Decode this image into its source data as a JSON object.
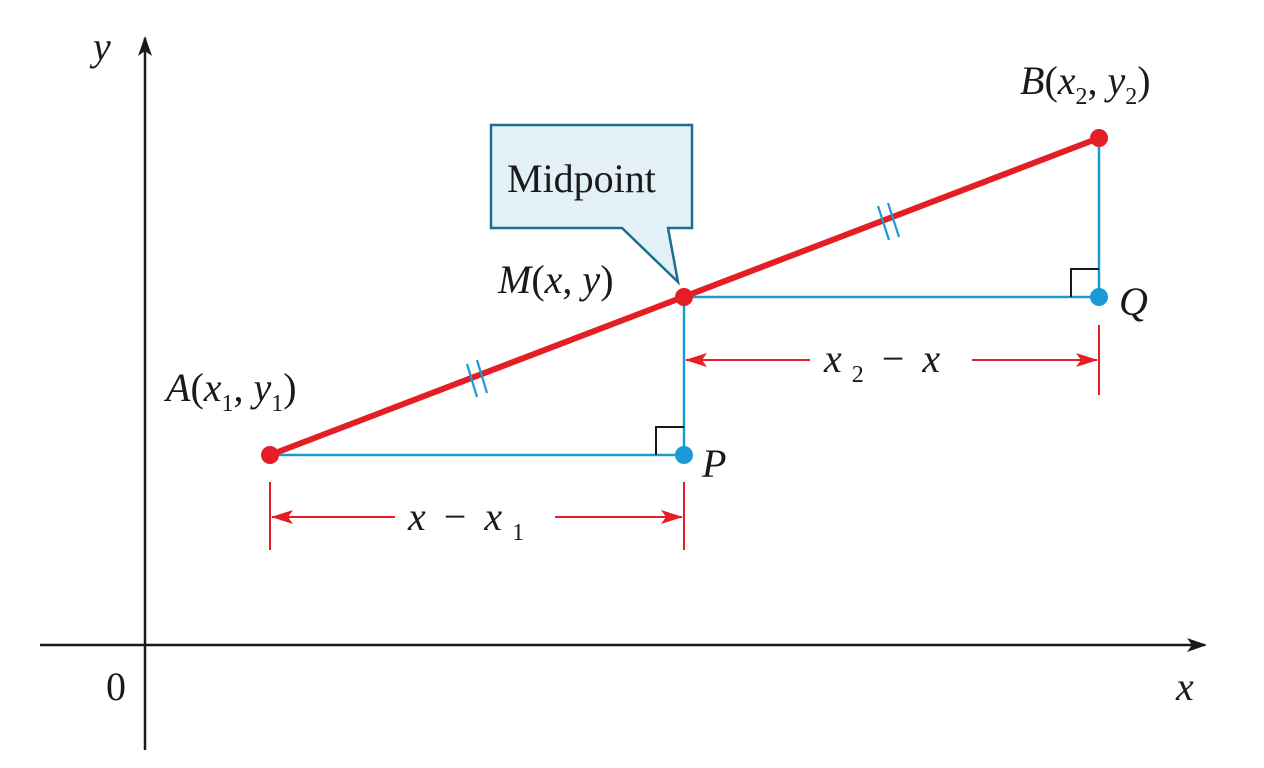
{
  "colors": {
    "segment": "#e31e24",
    "construction": "#1b9ad6",
    "callout_fill": "#e4f0f8",
    "callout_stroke": "#1a6f8f",
    "axes": "#1a1a1a"
  },
  "axes": {
    "x_label": "x",
    "y_label": "y",
    "origin_label": "0"
  },
  "callout": {
    "text": "Midpoint"
  },
  "points": {
    "A": {
      "name": "A",
      "x": "x",
      "x_sub": "1",
      "y": "y",
      "y_sub": "1"
    },
    "B": {
      "name": "B",
      "x": "x",
      "x_sub": "2",
      "y": "y",
      "y_sub": "2"
    },
    "M": {
      "name": "M",
      "x": "x",
      "y": "y"
    },
    "P": {
      "name": "P"
    },
    "Q": {
      "name": "Q"
    }
  },
  "dimensions": {
    "bottom": {
      "left": "x",
      "minus": "−",
      "right": "x",
      "right_sub": "1"
    },
    "top": {
      "left": "x",
      "left_sub": "2",
      "minus": "−",
      "right": "x"
    }
  },
  "punct": {
    "open": "(",
    "comma": ", ",
    "close": ")"
  }
}
